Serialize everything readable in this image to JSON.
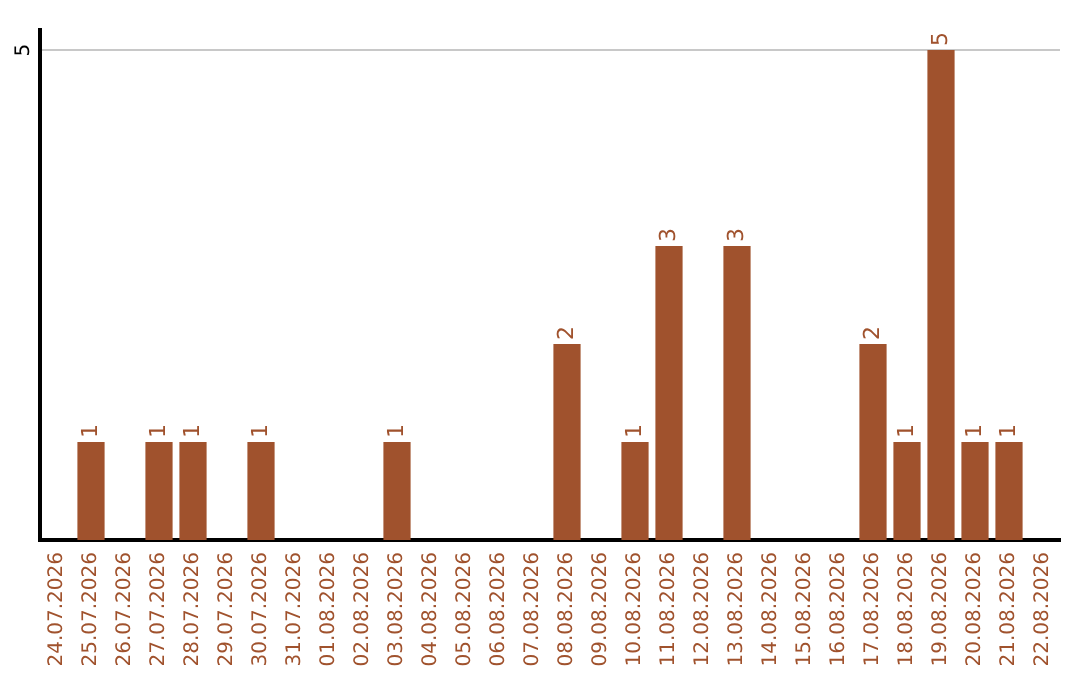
{
  "chart_data": {
    "type": "bar",
    "categories": [
      "24.07.2026",
      "25.07.2026",
      "26.07.2026",
      "27.07.2026",
      "28.07.2026",
      "29.07.2026",
      "30.07.2026",
      "31.07.2026",
      "01.08.2026",
      "02.08.2026",
      "03.08.2026",
      "04.08.2026",
      "05.08.2026",
      "06.08.2026",
      "07.08.2026",
      "08.08.2026",
      "09.08.2026",
      "10.08.2026",
      "11.08.2026",
      "12.08.2026",
      "13.08.2026",
      "14.08.2026",
      "15.08.2026",
      "16.08.2026",
      "17.08.2026",
      "18.08.2026",
      "19.08.2026",
      "20.08.2026",
      "21.08.2026",
      "22.08.2026"
    ],
    "values": [
      0,
      1,
      0,
      1,
      1,
      0,
      1,
      0,
      0,
      0,
      1,
      0,
      0,
      0,
      0,
      2,
      0,
      1,
      3,
      0,
      3,
      0,
      0,
      0,
      2,
      1,
      5,
      1,
      1,
      0
    ],
    "value_labels": [
      null,
      "1",
      null,
      "1",
      "1",
      null,
      "1",
      null,
      null,
      null,
      "1",
      null,
      null,
      null,
      null,
      "2",
      null,
      "1",
      "3",
      null,
      "3",
      null,
      null,
      null,
      "2",
      "1",
      "5",
      "1",
      "1",
      null
    ],
    "color": "#a0522d",
    "ylim": [
      0,
      5.2
    ],
    "yticks": [
      5
    ],
    "grid": "y",
    "legend": false
  }
}
